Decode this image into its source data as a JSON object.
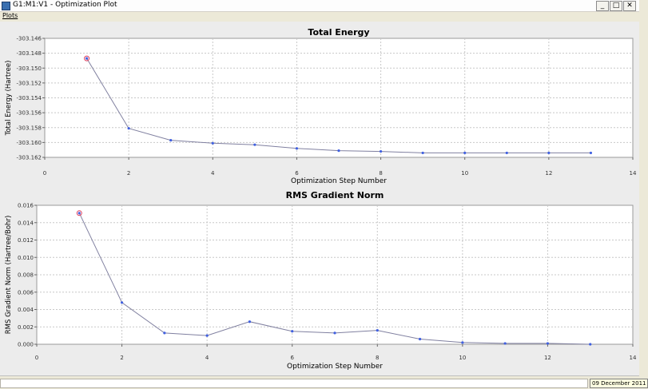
{
  "window": {
    "title": "G1:M1:V1 - Optimization Plot",
    "minimize_glyph": "_",
    "maximize_glyph": "□",
    "close_glyph": "✕"
  },
  "menu": {
    "items": [
      "Plots"
    ]
  },
  "status": {
    "date": "09 December 2011"
  },
  "chart_data": [
    {
      "type": "line",
      "title": "Total Energy",
      "xlabel": "Optimization Step Number",
      "ylabel": "Total Energy (Hartree)",
      "xlim": [
        0,
        14
      ],
      "ylim": [
        -303.162,
        -303.146
      ],
      "xticks": [
        0,
        2,
        4,
        6,
        8,
        10,
        12,
        14
      ],
      "yticks": [
        -303.146,
        -303.148,
        -303.15,
        -303.152,
        -303.154,
        -303.156,
        -303.158,
        -303.16,
        -303.162
      ],
      "ytick_labels": [
        "-303.146",
        "-303.148",
        "-303.150",
        "-303.152",
        "-303.154",
        "-303.156",
        "-303.158",
        "-303.160",
        "-303.162"
      ],
      "grid": true,
      "line_color": "#8080a0",
      "marker_color": "#4060e0",
      "highlight_color": "#e04060",
      "highlight_index": 0,
      "x": [
        1,
        2,
        3,
        4,
        5,
        6,
        7,
        8,
        9,
        10,
        11,
        12,
        13
      ],
      "y": [
        -303.1487,
        -303.1581,
        -303.1597,
        -303.1601,
        -303.1603,
        -303.1608,
        -303.1611,
        -303.1612,
        -303.1614,
        -303.1614,
        -303.1614,
        -303.1614,
        -303.1614
      ]
    },
    {
      "type": "line",
      "title": "RMS Gradient Norm",
      "xlabel": "Optimization Step Number",
      "ylabel": "RMS Gradient Norm (Hartree/Bohr)",
      "xlim": [
        0,
        14
      ],
      "ylim": [
        0.0,
        0.016
      ],
      "xticks": [
        0,
        2,
        4,
        6,
        8,
        10,
        12,
        14
      ],
      "yticks": [
        0.016,
        0.014,
        0.012,
        0.01,
        0.008,
        0.006,
        0.004,
        0.002,
        0.0
      ],
      "ytick_labels": [
        "0.016",
        "0.014",
        "0.012",
        "0.010",
        "0.008",
        "0.006",
        "0.004",
        "0.002",
        "0.000"
      ],
      "grid": true,
      "line_color": "#8080a0",
      "marker_color": "#4060e0",
      "highlight_color": "#e04060",
      "highlight_index": 0,
      "x": [
        1,
        2,
        3,
        4,
        5,
        6,
        7,
        8,
        9,
        10,
        11,
        12,
        13
      ],
      "y": [
        0.0151,
        0.0048,
        0.0013,
        0.001,
        0.0026,
        0.0015,
        0.0013,
        0.0016,
        0.0006,
        0.0002,
        0.0001,
        0.0001,
        0.0
      ]
    }
  ]
}
